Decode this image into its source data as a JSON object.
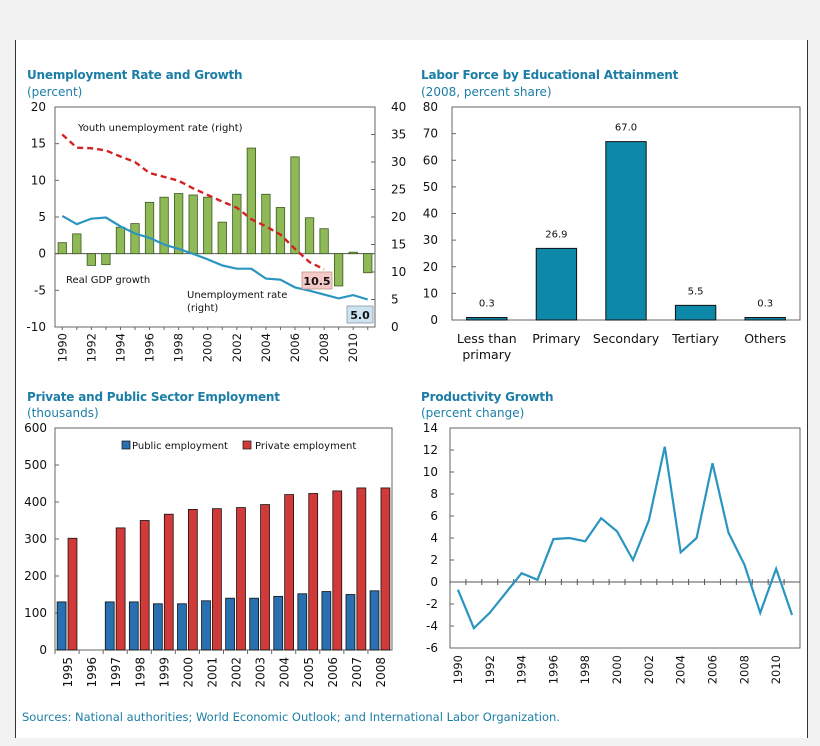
{
  "colors": {
    "title": "#1c7ea6",
    "green": "#8fb957",
    "red_dash": "#d32222",
    "blue_line": "#2a95c0",
    "teal_bar": "#0e88a8",
    "public": "#2a6fb0",
    "private": "#d23a3a",
    "label_red_bg": "#f7c8c8",
    "label_blue_bg": "#cde3ef"
  },
  "sources": "Sources: National authorities; World Economic Outlook; and International Labor Organization.",
  "chart_data": [
    {
      "id": "unemp",
      "type": "bar",
      "title": "Unemployment Rate and Growth",
      "subtitle": "(percent)",
      "years": [
        1990,
        1991,
        1992,
        1993,
        1994,
        1995,
        1996,
        1997,
        1998,
        1999,
        2000,
        2001,
        2002,
        2003,
        2004,
        2005,
        2006,
        2007,
        2008,
        2009,
        2010,
        2011
      ],
      "x_tick_labels": [
        "1990",
        "1992",
        "1994",
        "1996",
        "1998",
        "2000",
        "2002",
        "2004",
        "2006",
        "2008",
        "2010"
      ],
      "ylim_left": [
        -10,
        20
      ],
      "yticks_left": [
        -10,
        -5,
        0,
        5,
        10,
        15,
        20
      ],
      "ylim_right": [
        0,
        40
      ],
      "yticks_right": [
        0,
        5,
        10,
        15,
        20,
        25,
        30,
        35,
        40
      ],
      "series": [
        {
          "name": "Real GDP growth",
          "axis": "left",
          "kind": "bar",
          "values": [
            1.5,
            2.7,
            -1.6,
            -1.5,
            3.6,
            4.1,
            7.0,
            7.7,
            8.2,
            8.0,
            7.7,
            4.3,
            8.1,
            14.4,
            8.1,
            6.3,
            13.2,
            4.9,
            3.4,
            -4.4,
            0.2,
            -2.6
          ]
        },
        {
          "name": "Youth unemployment rate (right)",
          "axis": "right",
          "kind": "dash",
          "values": [
            35.0,
            32.6,
            32.5,
            32.1,
            31.0,
            30.0,
            28.0,
            27.3,
            26.6,
            25.2,
            24.0,
            22.8,
            21.7,
            19.6,
            18.3,
            16.8,
            14.2,
            11.8,
            10.5
          ]
        },
        {
          "name": "Unemployment rate (right)",
          "axis": "right",
          "kind": "line",
          "values": [
            20.2,
            18.7,
            19.7,
            19.9,
            18.3,
            17.0,
            16.2,
            15.0,
            14.2,
            13.3,
            12.3,
            11.2,
            10.6,
            10.6,
            8.8,
            8.6,
            7.2,
            6.6,
            5.9,
            5.2,
            5.8,
            5.0
          ]
        }
      ],
      "labels": {
        "youth": "Youth unemployment rate (right)",
        "gdp": "Real GDP growth",
        "unemp_line1": "Unemployment rate",
        "unemp_line2": "(right)",
        "youth_end": "10.5",
        "unemp_end": "5.0"
      }
    },
    {
      "id": "labor",
      "type": "bar",
      "title": "Labor Force by Educational Attainment",
      "subtitle": "(2008, percent share)",
      "categories": [
        [
          "Less than",
          "primary"
        ],
        [
          "Primary"
        ],
        [
          "Secondary"
        ],
        [
          "Tertiary"
        ],
        [
          "Others"
        ]
      ],
      "values": [
        0.3,
        26.9,
        67.0,
        5.5,
        0.3
      ],
      "value_labels": [
        "0.3",
        "26.9",
        "67.0",
        "5.5",
        "0.3"
      ],
      "ylim": [
        0,
        80
      ],
      "yticks": [
        0,
        10,
        20,
        30,
        40,
        50,
        60,
        70,
        80
      ]
    },
    {
      "id": "employment",
      "type": "bar",
      "title": "Private and Public Sector Employment",
      "subtitle": "(thousands)",
      "categories": [
        "1995",
        "1996",
        "1997",
        "1998",
        "1999",
        "2000",
        "2001",
        "2002",
        "2003",
        "2004",
        "2005",
        "2006",
        "2007",
        "2008"
      ],
      "series": [
        {
          "name": "Public employment",
          "values": [
            130,
            null,
            130,
            130,
            125,
            125,
            133,
            140,
            140,
            145,
            152,
            158,
            150,
            160
          ]
        },
        {
          "name": "Private employment",
          "values": [
            302,
            null,
            330,
            350,
            367,
            380,
            382,
            385,
            393,
            420,
            423,
            430,
            438,
            438
          ]
        }
      ],
      "ylim": [
        0,
        600
      ],
      "yticks": [
        0,
        100,
        200,
        300,
        400,
        500,
        600
      ]
    },
    {
      "id": "productivity",
      "type": "line",
      "title": "Productivity Growth",
      "subtitle": "(percent change)",
      "x": [
        1990,
        1991,
        1992,
        1993,
        1994,
        1995,
        1996,
        1997,
        1998,
        1999,
        2000,
        2001,
        2002,
        2003,
        2004,
        2005,
        2006,
        2007,
        2008,
        2009,
        2010,
        2011
      ],
      "values": [
        -0.7,
        -4.2,
        -2.8,
        -1.0,
        0.8,
        0.2,
        3.9,
        4.0,
        3.7,
        5.8,
        4.6,
        2.0,
        5.6,
        12.3,
        2.7,
        4.0,
        10.8,
        4.5,
        1.6,
        -2.8,
        1.2,
        -3.0
      ],
      "x_tick_labels": [
        "1990",
        "1992",
        "1994",
        "1996",
        "1998",
        "2000",
        "2002",
        "2004",
        "2006",
        "2008",
        "2010"
      ],
      "ylim": [
        -6,
        14
      ],
      "yticks": [
        -6,
        -4,
        -2,
        0,
        2,
        4,
        6,
        8,
        10,
        12,
        14
      ]
    }
  ]
}
